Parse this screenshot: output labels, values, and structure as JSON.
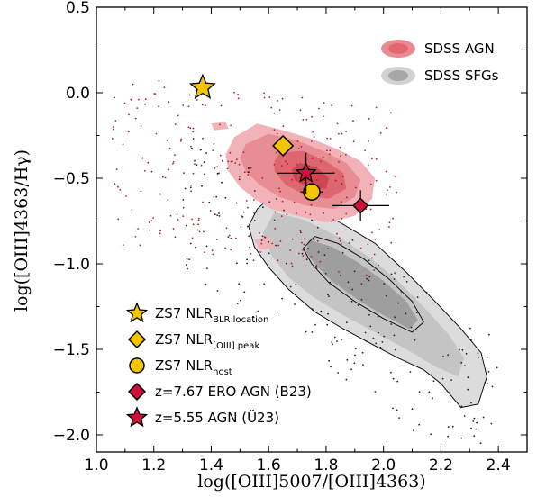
{
  "chart_data": {
    "type": "scatter",
    "title": "",
    "xlabel": "log([OIII]5007/[OIII]4363)",
    "ylabel": "log([OIII]4363/Hγ)",
    "xlim": [
      1.0,
      2.5
    ],
    "ylim": [
      -2.1,
      0.5
    ],
    "xticks": [
      1.0,
      1.2,
      1.4,
      1.6,
      1.8,
      2.0,
      2.2,
      2.4
    ],
    "xtick_labels": [
      "1.0",
      "1.2",
      "1.4",
      "1.6",
      "1.8",
      "2.0",
      "2.2",
      "2.4"
    ],
    "yticks": [
      0.5,
      0.0,
      -0.5,
      -1.0,
      -1.5,
      -2.0
    ],
    "ytick_labels": [
      "0.5",
      "0.0",
      "−0.5",
      "−1.0",
      "−1.5",
      "−2.0"
    ],
    "grid": false,
    "legend_placement": [
      "top-right",
      "bottom-left"
    ],
    "background_series": [
      {
        "name": "SDSS AGN",
        "color": "#e8707a",
        "description_color": "red density contours"
      },
      {
        "name": "SDSS SFGs",
        "color": "#a8a8a8",
        "description_color": "grey density contours"
      }
    ],
    "series": [
      {
        "name": "ZS7 NLR",
        "sub": "BLR location",
        "marker": "star",
        "color": "#f2c500",
        "x": 1.37,
        "y": 0.03,
        "xerr": null,
        "yerr": null
      },
      {
        "name": "ZS7 NLR",
        "sub": "[OIII] peak",
        "marker": "diamond",
        "color": "#f2c500",
        "x": 1.65,
        "y": -0.31,
        "xerr": null,
        "yerr": null
      },
      {
        "name": "ZS7 NLR",
        "sub": "host",
        "marker": "circle",
        "color": "#f2c500",
        "x": 1.75,
        "y": -0.58,
        "xerr": 0.04,
        "yerr": 0.05
      },
      {
        "name": "z=7.67 ERO AGN (B23)",
        "sub": "",
        "marker": "diamond",
        "color": "#d0103a",
        "x": 1.92,
        "y": -0.66,
        "xerr": 0.1,
        "yerr": 0.09
      },
      {
        "name": "z=5.55 AGN (Ü23)",
        "sub": "",
        "marker": "star",
        "color": "#d0103a",
        "x": 1.73,
        "y": -0.47,
        "xerr": 0.1,
        "yerr": 0.12
      }
    ]
  }
}
